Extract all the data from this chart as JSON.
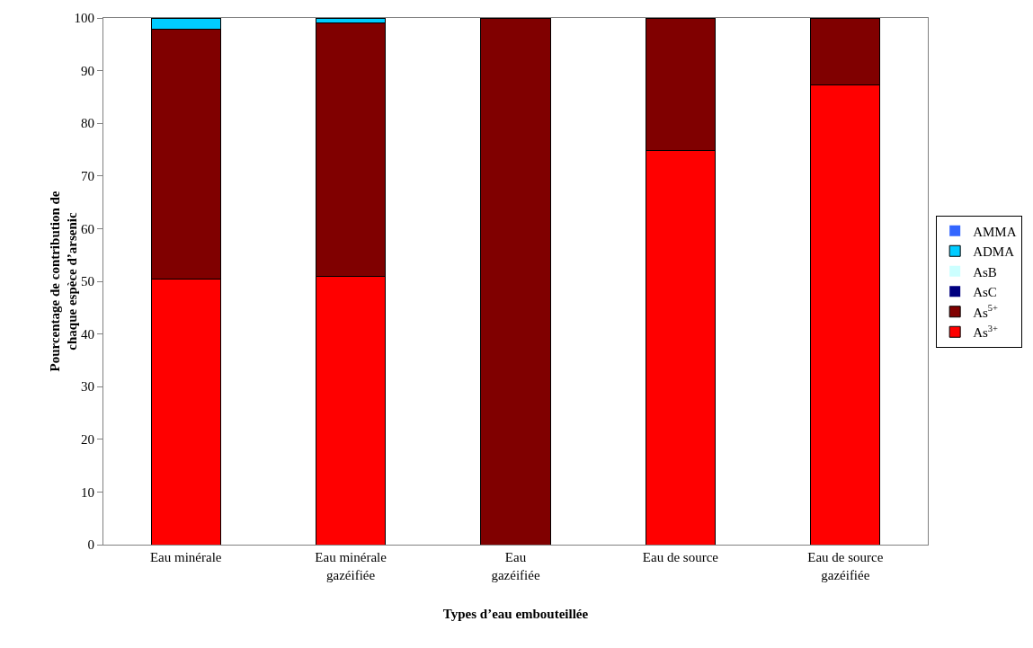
{
  "chart_data": {
    "type": "bar",
    "stacked": true,
    "xlabel": "Types d’eau embouteillée",
    "ylabel": "Pourcentage de contribution de\nchaque espèce d’arsenic",
    "categories": [
      "Eau minérale",
      "Eau minérale\ngazéifiée",
      "Eau\ngazéifiée",
      "Eau de source",
      "Eau de source\ngazéifiée"
    ],
    "series": [
      {
        "name": "As$^{3+}$",
        "color": "#ff0000",
        "values": [
          50.4,
          50.9,
          0,
          74.8,
          87.3
        ]
      },
      {
        "name": "As$^{5+}$",
        "color": "#800000",
        "values": [
          47.4,
          48.1,
          100,
          25.2,
          12.7
        ]
      },
      {
        "name": "AsC",
        "color": "#000080",
        "values": [
          0,
          0,
          0,
          0,
          0
        ]
      },
      {
        "name": "AsB",
        "color": "#ccffff",
        "values": [
          0,
          0,
          0,
          0,
          0
        ]
      },
      {
        "name": "ADMA",
        "color": "#00ccff",
        "values": [
          2.2,
          1.0,
          0,
          0,
          0
        ]
      },
      {
        "name": "AMMA",
        "color": "#3366ff",
        "values": [
          0,
          0,
          0,
          0,
          0
        ]
      }
    ],
    "ylim": [
      0,
      100
    ],
    "yticks": [
      0,
      10,
      20,
      30,
      40,
      50,
      60,
      70,
      80,
      90,
      100
    ],
    "grid": false,
    "legend": "right"
  }
}
